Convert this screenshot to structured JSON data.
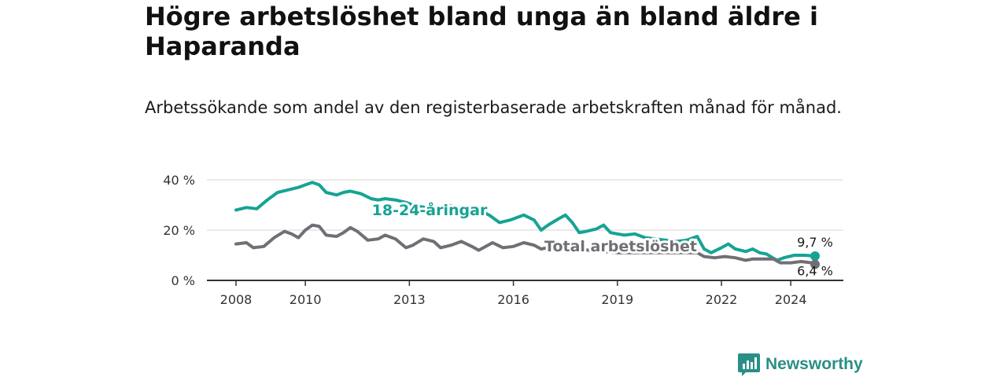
{
  "header": {
    "title": "Högre arbetslöshet bland unga än bland äldre i Haparanda",
    "subtitle": "Arbetssökande som andel av den registerbaserade arbetskraften månad för månad."
  },
  "brand": {
    "name": "Newsworthy"
  },
  "colors": {
    "youth": "#16a394",
    "total": "#6f6f75",
    "grid": "#d4d4d4",
    "axis": "#333333",
    "brand": "#2a8f86"
  },
  "chart_data": {
    "type": "line",
    "title": "Högre arbetslöshet bland unga än bland äldre i Haparanda",
    "subtitle": "Arbetssökande som andel av den registerbaserade arbetskraften månad för månad.",
    "y_ticks": [
      "0 %",
      "20 %",
      "40 %"
    ],
    "ylim": [
      0,
      40
    ],
    "xlim": [
      2008,
      2025.3
    ],
    "x_ticks": [
      "2008",
      "2010",
      "2013",
      "2016",
      "2019",
      "2022",
      "2024"
    ],
    "grid": true,
    "series": [
      {
        "name": "18-24-åringar",
        "end_label": "9,7 %",
        "points": [
          [
            2008.0,
            28
          ],
          [
            2008.3,
            29
          ],
          [
            2008.6,
            28.5
          ],
          [
            2008.9,
            32
          ],
          [
            2009.2,
            35
          ],
          [
            2009.5,
            36
          ],
          [
            2009.8,
            37
          ],
          [
            2010.0,
            38
          ],
          [
            2010.2,
            39
          ],
          [
            2010.4,
            38
          ],
          [
            2010.6,
            35
          ],
          [
            2010.9,
            34
          ],
          [
            2011.1,
            35
          ],
          [
            2011.3,
            35.5
          ],
          [
            2011.6,
            34.5
          ],
          [
            2011.9,
            32.5
          ],
          [
            2012.1,
            32
          ],
          [
            2012.3,
            32.5
          ],
          [
            2012.6,
            32
          ],
          [
            2012.9,
            31
          ],
          [
            2013.2,
            29.5
          ],
          [
            2013.5,
            29
          ],
          [
            2013.8,
            28.5
          ],
          [
            2014.1,
            30
          ],
          [
            2014.4,
            29
          ],
          [
            2014.7,
            28.5
          ],
          [
            2015.0,
            28
          ],
          [
            2015.3,
            26
          ],
          [
            2015.6,
            23
          ],
          [
            2015.9,
            24
          ],
          [
            2016.1,
            25
          ],
          [
            2016.3,
            26
          ],
          [
            2016.6,
            24
          ],
          [
            2016.8,
            20
          ],
          [
            2017.0,
            22
          ],
          [
            2017.3,
            24.5
          ],
          [
            2017.5,
            26
          ],
          [
            2017.7,
            23
          ],
          [
            2017.9,
            19
          ],
          [
            2018.1,
            19.5
          ],
          [
            2018.4,
            20.5
          ],
          [
            2018.6,
            22
          ],
          [
            2018.8,
            19
          ],
          [
            2019.0,
            18.5
          ],
          [
            2019.2,
            18
          ],
          [
            2019.5,
            18.5
          ],
          [
            2019.8,
            17
          ],
          [
            2020.1,
            16.5
          ],
          [
            2020.4,
            16
          ],
          [
            2020.7,
            15.5
          ],
          [
            2021.0,
            16
          ],
          [
            2021.3,
            17.5
          ],
          [
            2021.5,
            12.5
          ],
          [
            2021.7,
            11
          ],
          [
            2022.0,
            13
          ],
          [
            2022.2,
            14.5
          ],
          [
            2022.4,
            12.5
          ],
          [
            2022.7,
            11.5
          ],
          [
            2022.9,
            12.5
          ],
          [
            2023.1,
            11
          ],
          [
            2023.3,
            10.5
          ],
          [
            2023.6,
            8
          ],
          [
            2023.8,
            9
          ],
          [
            2024.1,
            10
          ],
          [
            2024.4,
            10
          ],
          [
            2024.7,
            9.7
          ]
        ]
      },
      {
        "name": "Total arbetslöshet",
        "end_label": "6,4 %",
        "points": [
          [
            2008.0,
            14.5
          ],
          [
            2008.3,
            15
          ],
          [
            2008.5,
            13
          ],
          [
            2008.8,
            13.5
          ],
          [
            2009.1,
            17
          ],
          [
            2009.4,
            19.5
          ],
          [
            2009.6,
            18.5
          ],
          [
            2009.8,
            17
          ],
          [
            2010.0,
            20
          ],
          [
            2010.2,
            22
          ],
          [
            2010.4,
            21.5
          ],
          [
            2010.6,
            18
          ],
          [
            2010.9,
            17.5
          ],
          [
            2011.1,
            19
          ],
          [
            2011.3,
            21
          ],
          [
            2011.5,
            19.5
          ],
          [
            2011.8,
            16
          ],
          [
            2012.1,
            16.5
          ],
          [
            2012.3,
            18
          ],
          [
            2012.6,
            16.5
          ],
          [
            2012.9,
            13
          ],
          [
            2013.1,
            14
          ],
          [
            2013.4,
            16.5
          ],
          [
            2013.7,
            15.5
          ],
          [
            2013.9,
            13
          ],
          [
            2014.2,
            14
          ],
          [
            2014.5,
            15.5
          ],
          [
            2014.8,
            13.5
          ],
          [
            2015.0,
            12
          ],
          [
            2015.4,
            15
          ],
          [
            2015.7,
            13
          ],
          [
            2016.0,
            13.5
          ],
          [
            2016.3,
            15
          ],
          [
            2016.6,
            14
          ],
          [
            2016.8,
            12.5
          ],
          [
            2017.2,
            13.5
          ],
          [
            2017.5,
            13
          ],
          [
            2017.8,
            12.5
          ],
          [
            2018.2,
            12
          ],
          [
            2018.6,
            11.5
          ],
          [
            2019.0,
            11
          ],
          [
            2019.4,
            11
          ],
          [
            2019.8,
            11
          ],
          [
            2020.2,
            11
          ],
          [
            2020.6,
            11
          ],
          [
            2021.0,
            11
          ],
          [
            2021.3,
            11
          ],
          [
            2021.5,
            9.5
          ],
          [
            2021.8,
            9
          ],
          [
            2022.1,
            9.5
          ],
          [
            2022.4,
            9
          ],
          [
            2022.7,
            8
          ],
          [
            2022.9,
            8.5
          ],
          [
            2023.2,
            8.5
          ],
          [
            2023.5,
            8.5
          ],
          [
            2023.7,
            7
          ],
          [
            2024.0,
            7
          ],
          [
            2024.3,
            7.5
          ],
          [
            2024.6,
            7
          ],
          [
            2024.7,
            6.4
          ]
        ]
      }
    ],
    "series_labels": [
      {
        "text": "18-24-åringar",
        "series": 0
      },
      {
        "text": "Total arbetslöshet",
        "series": 1
      }
    ]
  }
}
